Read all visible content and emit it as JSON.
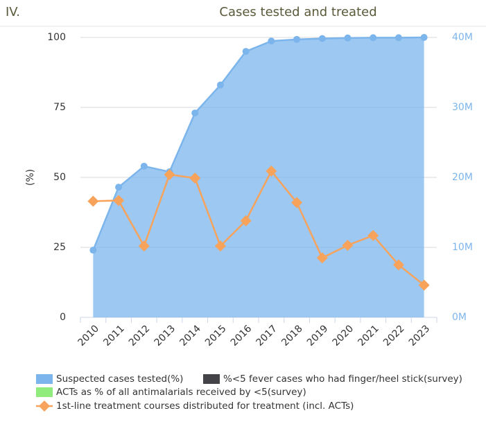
{
  "chart_data": {
    "type": "area_line",
    "corner_label": "IV.",
    "title": "Cases tested and treated",
    "ylabel": "(%)",
    "categories": [
      "2010",
      "2011",
      "2012",
      "2013",
      "2014",
      "2015",
      "2016",
      "2017",
      "2018",
      "2019",
      "2020",
      "2021",
      "2022",
      "2023"
    ],
    "ylim": [
      0,
      100
    ],
    "yticks": [
      0,
      25,
      50,
      75,
      100
    ],
    "y2lim": [
      0,
      40000000
    ],
    "y2ticks": [
      {
        "value": 0,
        "label": "0M"
      },
      {
        "value": 10000000,
        "label": "10M"
      },
      {
        "value": 20000000,
        "label": "20M"
      },
      {
        "value": 30000000,
        "label": "30M"
      },
      {
        "value": 40000000,
        "label": "40M"
      }
    ],
    "grid": true,
    "series": [
      {
        "name": "Suspected cases tested(%)",
        "color": "#7cb5ec",
        "kind": "area",
        "values": [
          24,
          46.5,
          54,
          52,
          73,
          83,
          95,
          98.7,
          99.3,
          99.6,
          99.8,
          99.9,
          99.9,
          100
        ]
      },
      {
        "name": "%<5 fever cases who had finger/heel stick(survey)",
        "color": "#434348",
        "kind": "area",
        "values": [
          null,
          null,
          null,
          null,
          null,
          null,
          null,
          null,
          null,
          null,
          null,
          null,
          null,
          null
        ]
      },
      {
        "name": "ACTs as % of all antimalarials received by <5(survey)",
        "color": "#90ed7d",
        "kind": "area",
        "values": [
          null,
          null,
          null,
          null,
          null,
          null,
          null,
          null,
          null,
          null,
          null,
          null,
          null,
          null
        ]
      },
      {
        "name": "1st-line treatment courses distributed for treatment (incl. ACTs)",
        "color": "#f7a35c",
        "kind": "line",
        "axis": "y2",
        "values": [
          16600000,
          16700000,
          10200000,
          20400000,
          19900000,
          10200000,
          13800000,
          20900000,
          16400000,
          8500000,
          10300000,
          11700000,
          7500000,
          4600000
        ]
      }
    ]
  }
}
